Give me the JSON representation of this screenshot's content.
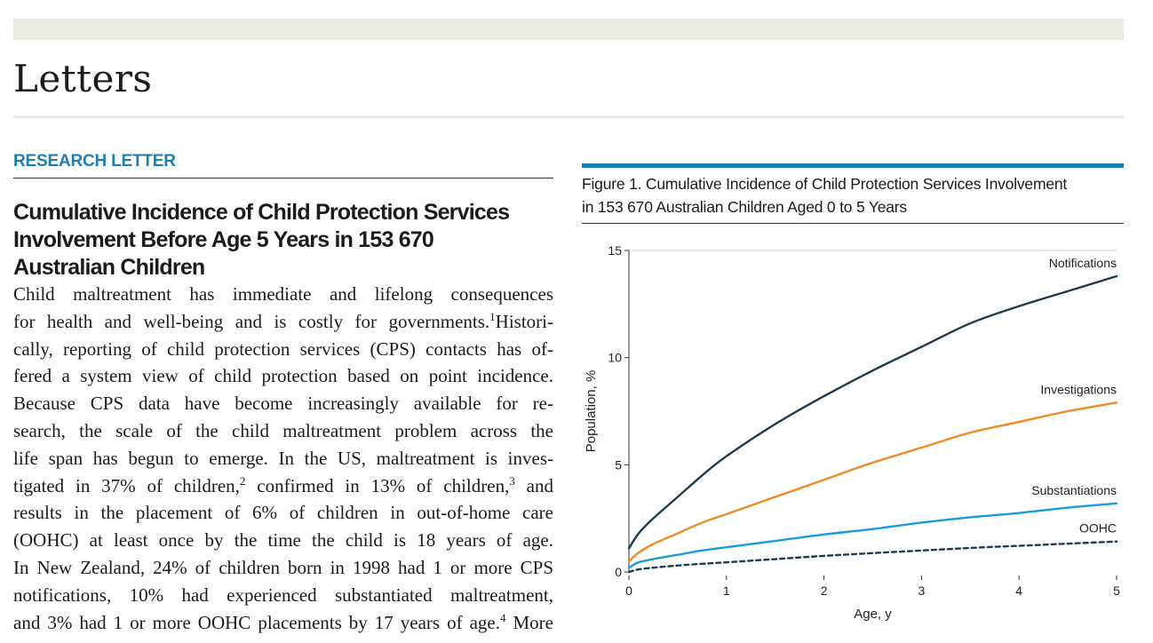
{
  "section": {
    "title": "Letters"
  },
  "article": {
    "kicker": "RESEARCH LETTER",
    "title_lines": [
      "Cumulative Incidence of Child Protection Services",
      "Involvement Before Age 5 Years in 153 670",
      "Australian Children"
    ],
    "body_lines": [
      {
        "t": "Child maltreatment has immediate and lifelong consequences"
      },
      {
        "t": "for health and well-being and is costly for governments.",
        "sup": "1",
        "after": "Histori-"
      },
      {
        "t": "cally, reporting of child protection services (CPS) contacts has of-"
      },
      {
        "t": "fered a system view of child protection based on point incidence."
      },
      {
        "t": "Because CPS data have become increasingly available for re-"
      },
      {
        "t": "search, the scale of the child maltreatment problem across the"
      },
      {
        "t": "life span has begun to emerge. In the US, maltreatment is inves-"
      },
      {
        "t": "tigated in 37% of children,",
        "sup": "2",
        "after": " confirmed in 13% of children,",
        "sup2": "3",
        "after2": " and"
      },
      {
        "t": "results in the placement of 6% of children in out-of-home care"
      },
      {
        "t": "(OOHC) at least once by the time the child is 18 years of age."
      },
      {
        "t": "In New Zealand, 24% of children born in 1998 had 1 or more CPS"
      },
      {
        "t": "notifications, 10% had experienced substantiated maltreatment,"
      },
      {
        "t": "and 3% had 1 or more OOHC placements by 17 years of age.",
        "sup": "4",
        "after": " More"
      }
    ]
  },
  "figure": {
    "caption_lines": [
      "Figure 1. Cumulative Incidence of Child Protection Services Involvement",
      "in 153 670 Australian Children Aged 0 to 5 Years"
    ]
  },
  "chart_data": {
    "type": "line",
    "xlabel": "Age, y",
    "ylabel": "Population, %",
    "xlim": [
      0,
      5
    ],
    "ylim": [
      0,
      15
    ],
    "xticks": [
      0,
      1,
      2,
      3,
      4,
      5
    ],
    "yticks": [
      0,
      5,
      10,
      15
    ],
    "grid": false,
    "legend": "labels at line ends (right)",
    "series": [
      {
        "name": "Notifications",
        "color": "#1f3b4d",
        "dash": false,
        "x": [
          0,
          0.1,
          0.25,
          0.5,
          0.75,
          1,
          1.5,
          2,
          2.5,
          3,
          3.5,
          4,
          4.5,
          5
        ],
        "y": [
          1.1,
          1.8,
          2.5,
          3.5,
          4.5,
          5.4,
          6.9,
          8.2,
          9.4,
          10.5,
          11.6,
          12.4,
          13.1,
          13.8
        ]
      },
      {
        "name": "Investigations",
        "color": "#f08a24",
        "dash": false,
        "x": [
          0,
          0.1,
          0.25,
          0.5,
          0.75,
          1,
          1.5,
          2,
          2.5,
          3,
          3.5,
          4,
          4.5,
          5
        ],
        "y": [
          0.5,
          0.9,
          1.3,
          1.8,
          2.3,
          2.7,
          3.5,
          4.3,
          5.1,
          5.8,
          6.5,
          7.0,
          7.5,
          7.9
        ]
      },
      {
        "name": "Substantiations",
        "color": "#1a9be0",
        "dash": false,
        "x": [
          0,
          0.1,
          0.25,
          0.5,
          0.75,
          1,
          1.5,
          2,
          2.5,
          3,
          3.5,
          4,
          4.5,
          5
        ],
        "y": [
          0.2,
          0.45,
          0.6,
          0.8,
          1.0,
          1.15,
          1.45,
          1.75,
          2.0,
          2.3,
          2.55,
          2.75,
          3.0,
          3.2
        ]
      },
      {
        "name": "OOHC",
        "color": "#1f3b4d",
        "dash": true,
        "x": [
          0,
          0.1,
          0.25,
          0.5,
          0.75,
          1,
          1.5,
          2,
          2.5,
          3,
          3.5,
          4,
          4.5,
          5
        ],
        "y": [
          0.0,
          0.12,
          0.2,
          0.3,
          0.38,
          0.45,
          0.6,
          0.75,
          0.88,
          1.0,
          1.12,
          1.22,
          1.32,
          1.42
        ]
      }
    ]
  }
}
